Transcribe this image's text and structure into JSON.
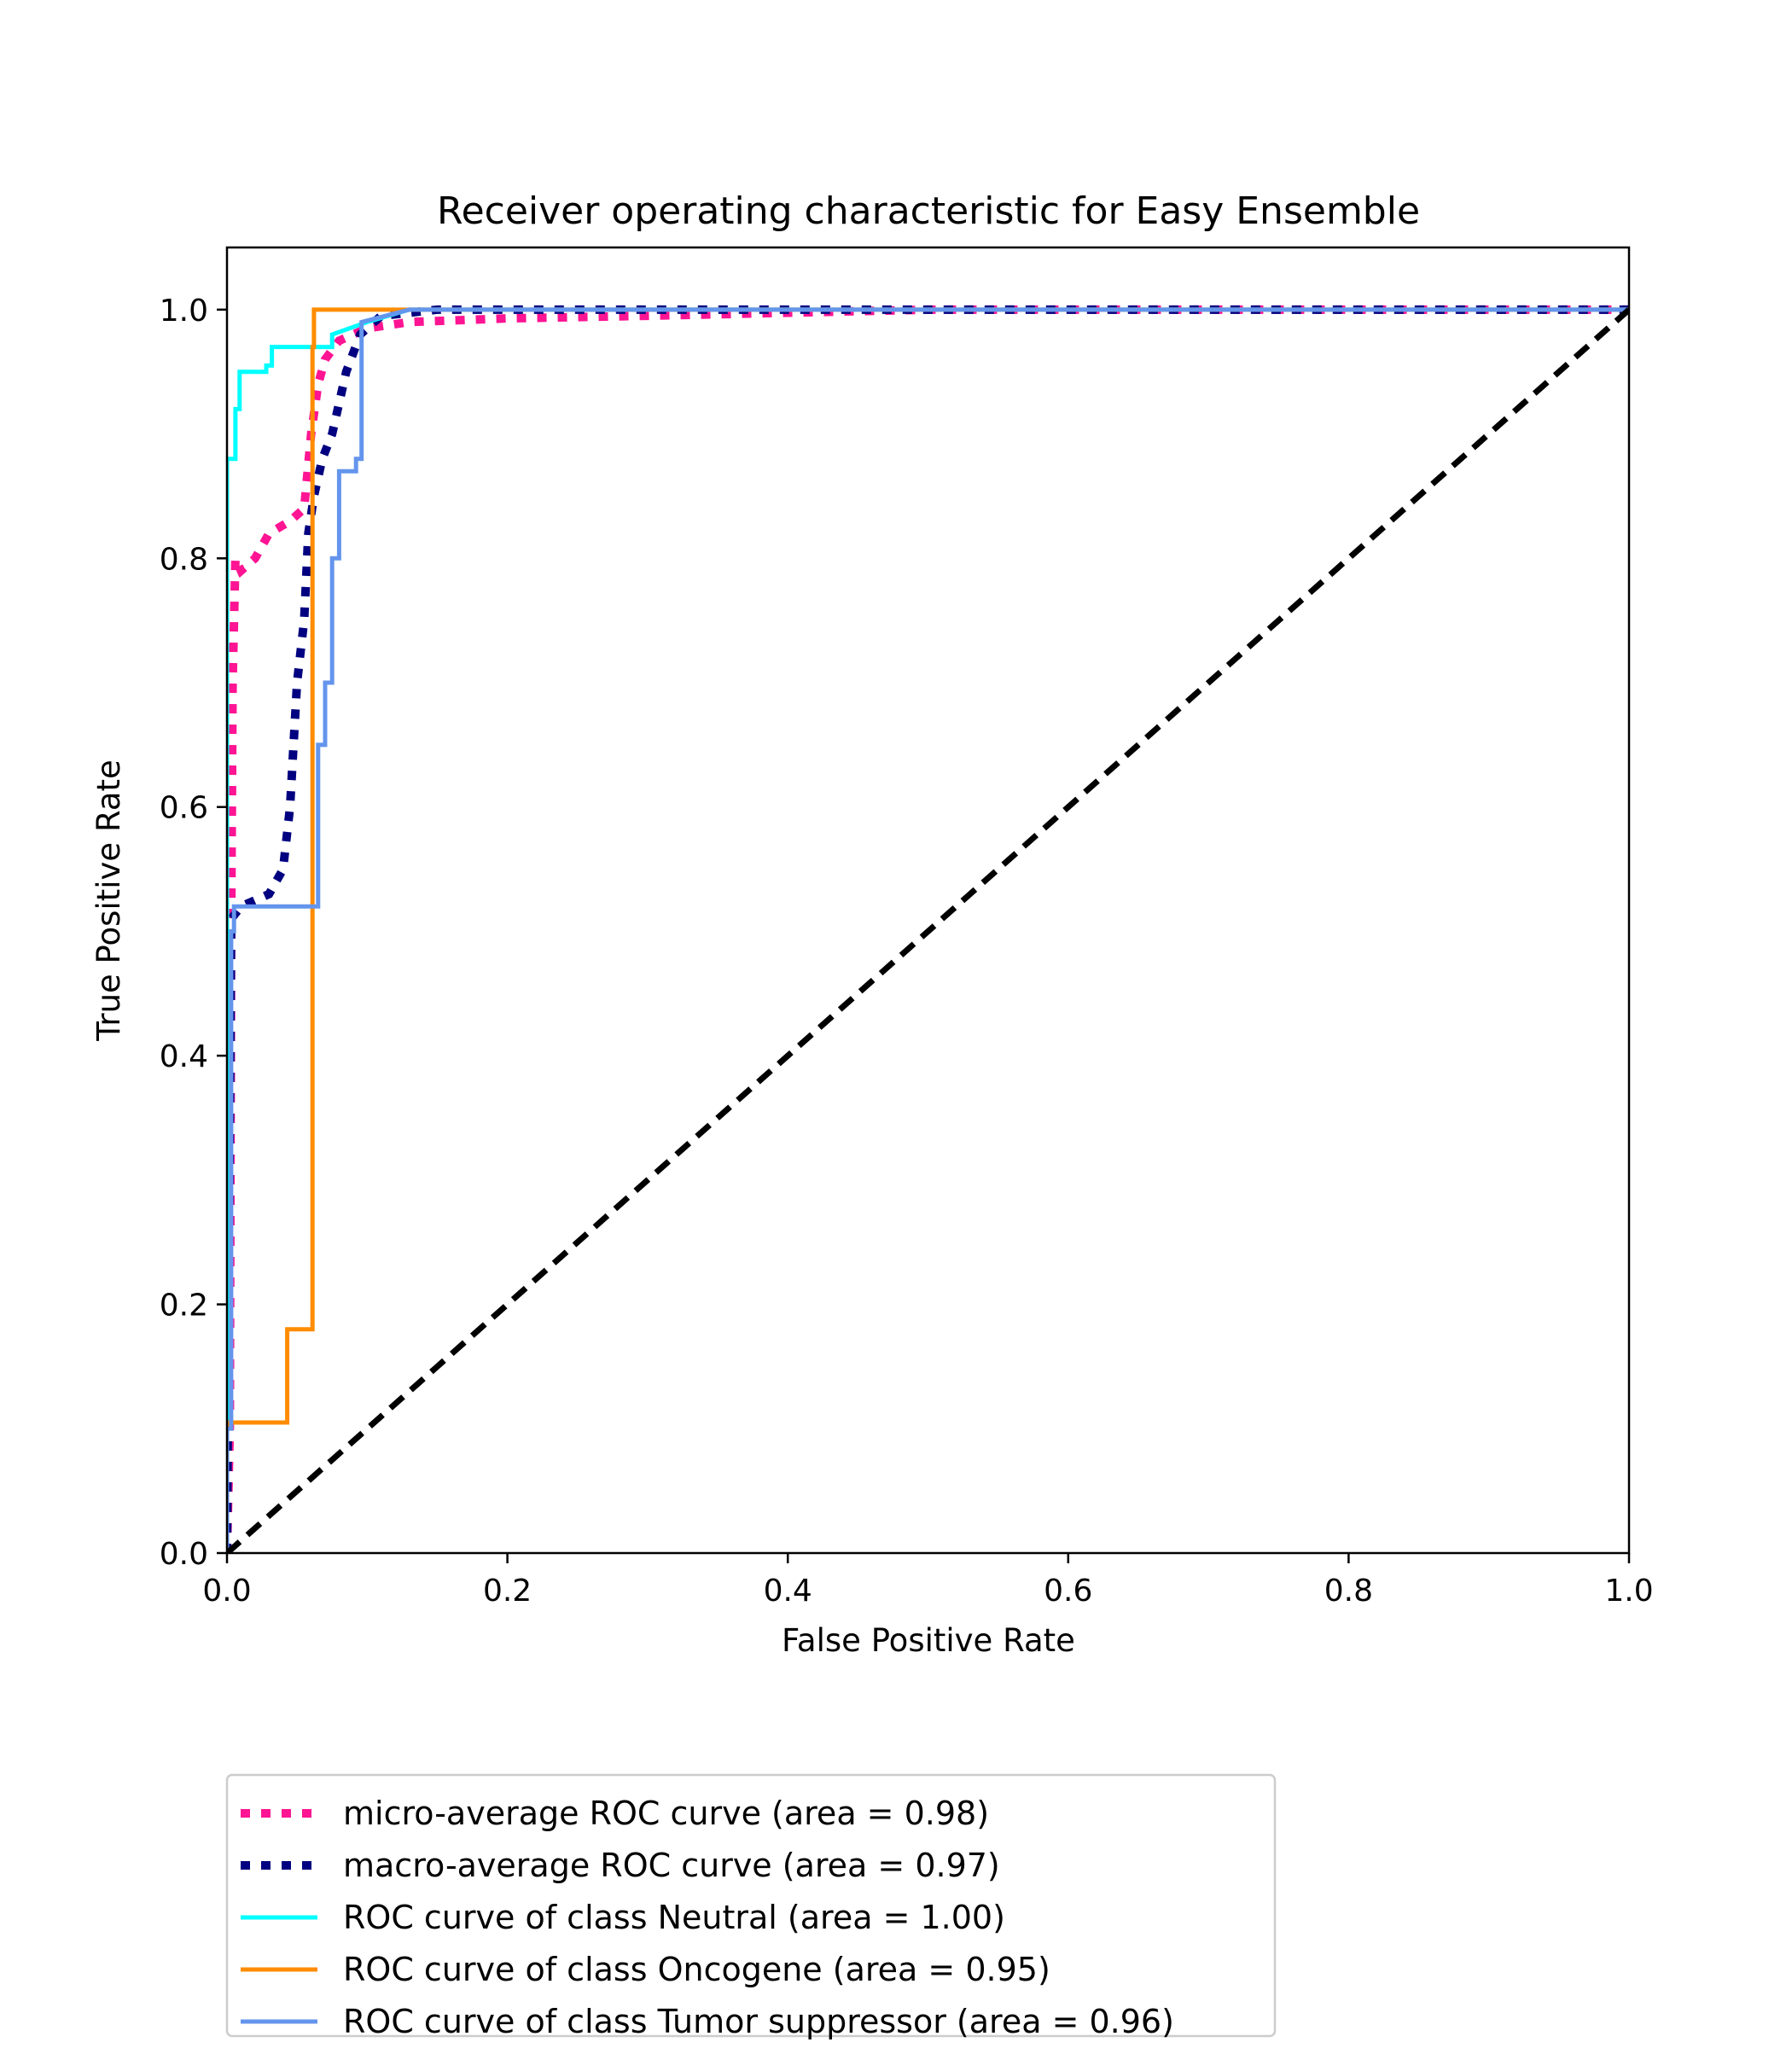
{
  "chart_data": {
    "type": "line",
    "title": "Receiver operating characteristic for Easy Ensemble",
    "xlabel": "False Positive Rate",
    "ylabel": "True Positive Rate",
    "xlim": [
      0.0,
      1.0
    ],
    "ylim": [
      0.0,
      1.05
    ],
    "xticks": [
      "0.0",
      "0.2",
      "0.4",
      "0.6",
      "0.8",
      "1.0"
    ],
    "yticks": [
      "0.0",
      "0.2",
      "0.4",
      "0.6",
      "0.8",
      "1.0"
    ],
    "grid": false,
    "legend_position": "bottom-left, below plot",
    "series": [
      {
        "name": "micro-average ROC curve (area = 0.98)",
        "color": "#ff1493",
        "style": "dotted",
        "x": [
          0.0,
          0.002,
          0.003,
          0.004,
          0.006,
          0.01,
          0.02,
          0.03,
          0.045,
          0.055,
          0.06,
          0.065,
          0.07,
          0.08,
          0.1,
          0.13,
          0.2,
          0.3,
          0.5,
          1.0
        ],
        "y": [
          0.0,
          0.1,
          0.5,
          0.7,
          0.8,
          0.79,
          0.8,
          0.82,
          0.83,
          0.84,
          0.9,
          0.94,
          0.96,
          0.975,
          0.985,
          0.99,
          0.993,
          0.995,
          1.0,
          1.0
        ]
      },
      {
        "name": "macro-average ROC curve (area = 0.97)",
        "color": "#000080",
        "style": "dotted",
        "x": [
          0.0,
          0.003,
          0.01,
          0.02,
          0.03,
          0.04,
          0.045,
          0.05,
          0.055,
          0.058,
          0.062,
          0.068,
          0.075,
          0.085,
          0.095,
          0.11,
          0.15,
          1.0
        ],
        "y": [
          0.0,
          0.51,
          0.52,
          0.525,
          0.53,
          0.55,
          0.6,
          0.7,
          0.75,
          0.82,
          0.85,
          0.88,
          0.9,
          0.95,
          0.98,
          0.995,
          1.0,
          1.0
        ]
      },
      {
        "name": "ROC curve of class Neutral (area = 1.00)",
        "color": "#00ffff",
        "style": "solid",
        "x": [
          0.0,
          0.0,
          0.006,
          0.006,
          0.009,
          0.009,
          0.028,
          0.028,
          0.032,
          0.032,
          0.075,
          0.075,
          0.1,
          0.13,
          1.0
        ],
        "y": [
          0.0,
          0.88,
          0.88,
          0.92,
          0.92,
          0.95,
          0.95,
          0.955,
          0.955,
          0.97,
          0.97,
          0.98,
          0.99,
          1.0,
          1.0
        ]
      },
      {
        "name": "ROC curve of class Oncogene (area = 0.95)",
        "color": "#ff8c00",
        "style": "solid",
        "x": [
          0.0,
          0.0,
          0.043,
          0.043,
          0.061,
          0.061,
          0.062,
          0.062,
          1.0
        ],
        "y": [
          0.0,
          0.105,
          0.105,
          0.18,
          0.18,
          0.97,
          0.97,
          1.0,
          1.0
        ]
      },
      {
        "name": "ROC curve of class Tumor suppressor (area = 0.96)",
        "color": "#6495ed",
        "style": "solid",
        "x": [
          0.0,
          0.0,
          0.003,
          0.003,
          0.005,
          0.005,
          0.065,
          0.065,
          0.07,
          0.07,
          0.075,
          0.075,
          0.08,
          0.08,
          0.092,
          0.092,
          0.096,
          0.096,
          0.13,
          1.0
        ],
        "y": [
          0.0,
          0.1,
          0.1,
          0.5,
          0.5,
          0.52,
          0.52,
          0.65,
          0.65,
          0.7,
          0.7,
          0.8,
          0.8,
          0.87,
          0.87,
          0.88,
          0.88,
          0.99,
          1.0,
          1.0
        ]
      },
      {
        "color": "#000000",
        "style": "dashed",
        "x": [
          0.0,
          1.0
        ],
        "y": [
          0.0,
          1.0
        ]
      }
    ]
  }
}
